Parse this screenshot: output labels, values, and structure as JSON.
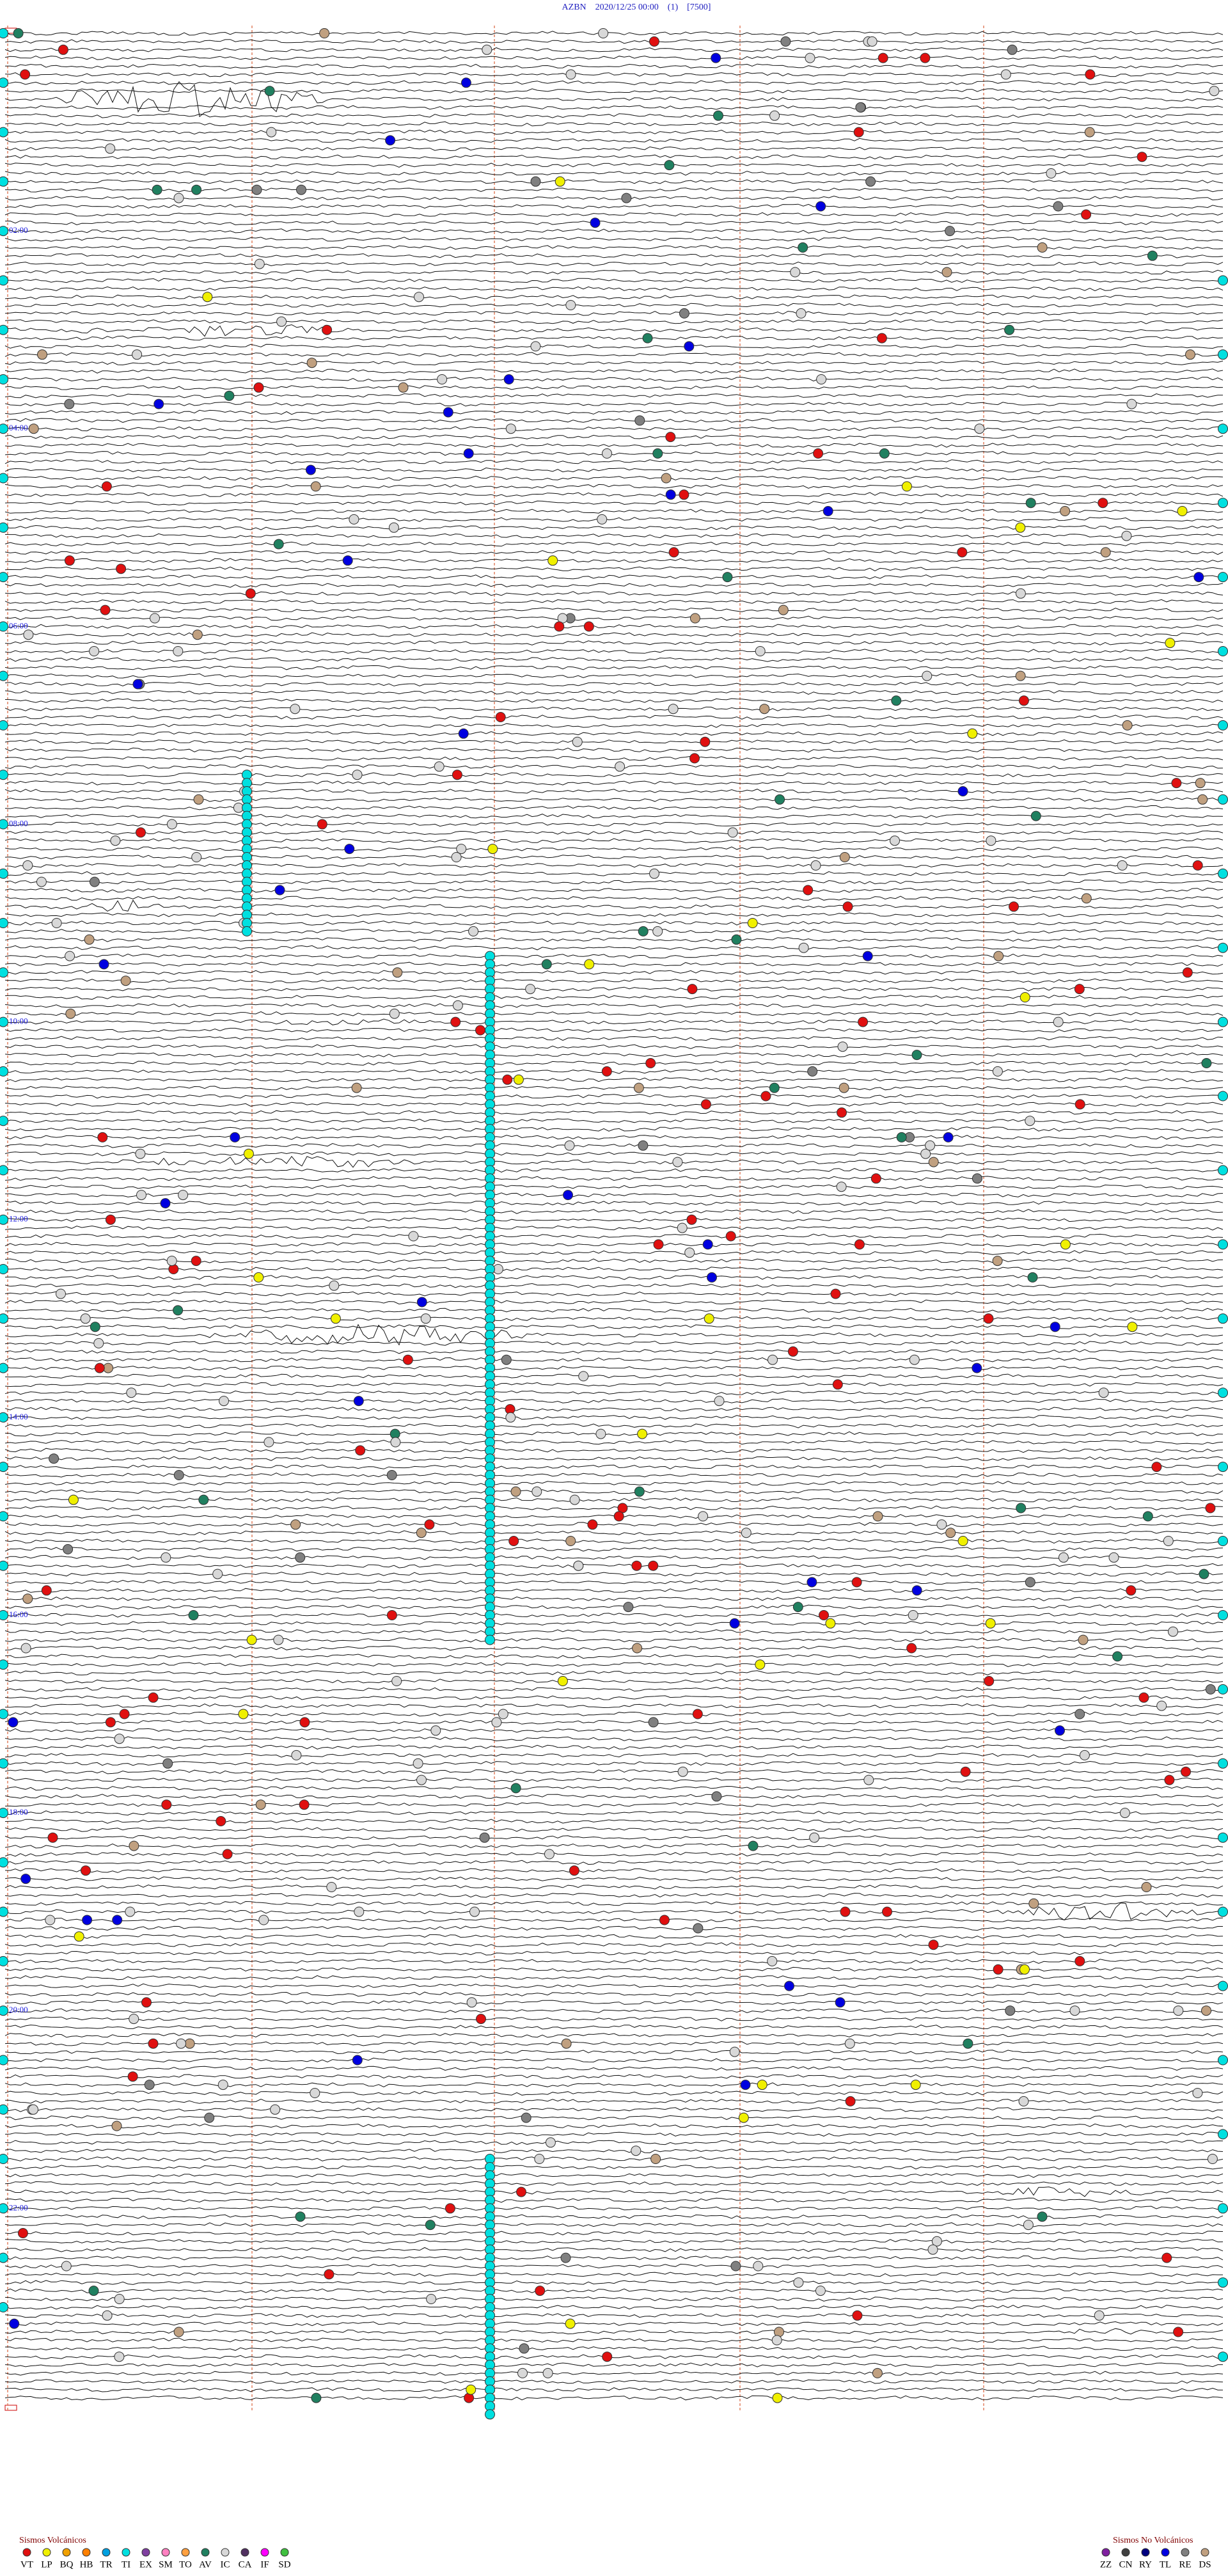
{
  "header": {
    "title": "AZBN    2020/12/25 00:00    (1)    [7500]"
  },
  "time_labels": [
    "02:00",
    "04:00",
    "06:00",
    "08:00",
    "10:00",
    "12:00",
    "14:00",
    "16:00",
    "18:00",
    "20:00",
    "22:00"
  ],
  "legend": {
    "volcanic": {
      "title": "Sismos Volcánicos",
      "codes": [
        {
          "code": "VT",
          "color": "#e01010"
        },
        {
          "code": "LP",
          "color": "#f0f000"
        },
        {
          "code": "BQ",
          "color": "#f0a000"
        },
        {
          "code": "HB",
          "color": "#ff8000"
        },
        {
          "code": "TR",
          "color": "#00a0e0"
        },
        {
          "code": "TI",
          "color": "#00e0e0"
        },
        {
          "code": "EX",
          "color": "#8040a0"
        },
        {
          "code": "SM",
          "color": "#ff80c0"
        },
        {
          "code": "TO",
          "color": "#ffa040"
        },
        {
          "code": "AV",
          "color": "#208060"
        },
        {
          "code": "IC",
          "color": "#d8d8d8"
        },
        {
          "code": "CA",
          "color": "#503060"
        },
        {
          "code": "IF",
          "color": "#ff00ff"
        },
        {
          "code": "SD",
          "color": "#40c040"
        }
      ]
    },
    "non_volcanic": {
      "title": "Sismos No Volcánicos",
      "codes": [
        {
          "code": "ZZ",
          "color": "#8020a0"
        },
        {
          "code": "CN",
          "color": "#404040"
        },
        {
          "code": "RY",
          "color": "#000080"
        },
        {
          "code": "TL",
          "color": "#0000e0"
        },
        {
          "code": "RE",
          "color": "#808080"
        },
        {
          "code": "DS",
          "color": "#c0a080"
        }
      ]
    }
  }
}
